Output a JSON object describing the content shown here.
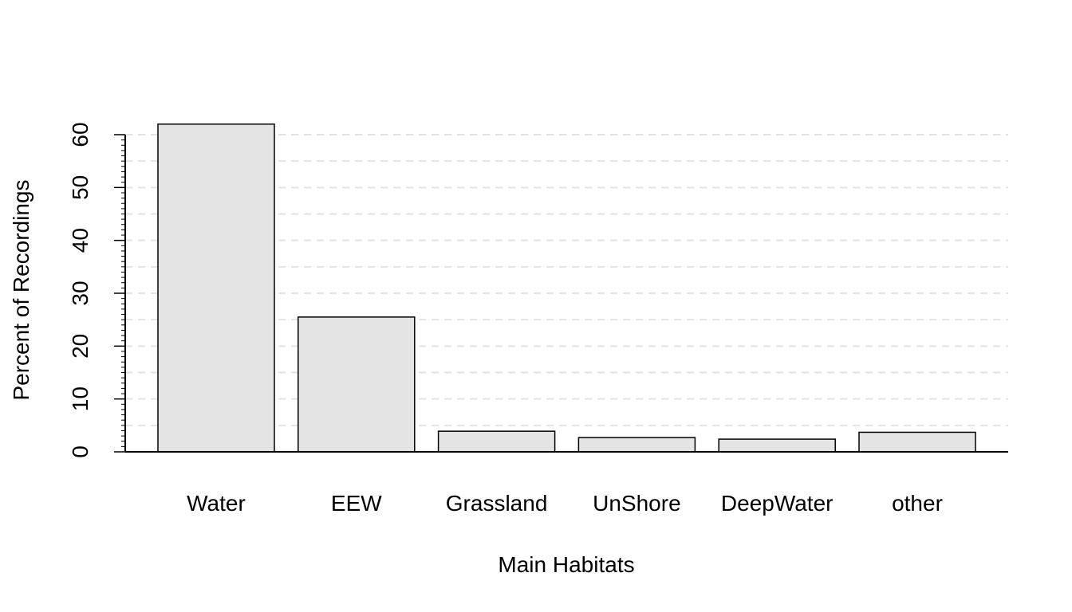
{
  "chart_data": {
    "type": "bar",
    "xlabel": "Main Habitats",
    "ylabel": "Percent of Recordings",
    "categories": [
      "Water",
      "EEW",
      "Grassland",
      "UnShore",
      "DeepWater",
      "other"
    ],
    "values": [
      62,
      25.5,
      3.9,
      2.7,
      2.4,
      3.7
    ],
    "ylim": [
      0,
      60
    ],
    "yticks": [
      "0",
      "10",
      "20",
      "30",
      "40",
      "50",
      "60"
    ],
    "grid": "horizontal dashed",
    "colors": {
      "bar_fill": "#e4e4e4",
      "bar_border": "#000000",
      "grid": "#e2e2e2"
    }
  }
}
